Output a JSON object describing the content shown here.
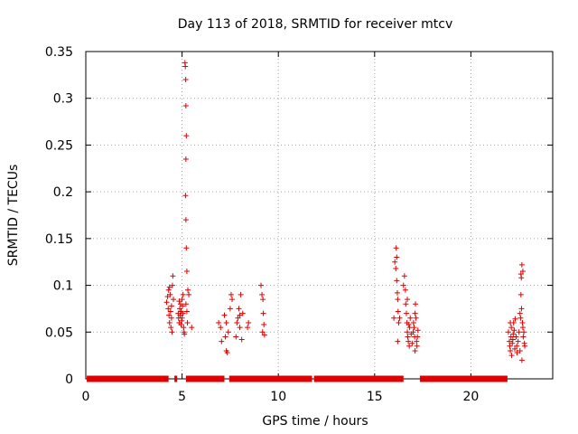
{
  "chart_data": {
    "type": "scatter",
    "title": "Day 113 of 2018, SRMTID for receiver mtcv",
    "xlabel": "GPS time / hours",
    "ylabel": "SRMTID / TECUs",
    "xlim": [
      0,
      24.25
    ],
    "ylim": [
      0,
      0.35
    ],
    "xticks": [
      0,
      5,
      10,
      15,
      20
    ],
    "xtick_labels": [
      "0",
      "5",
      "10",
      "15",
      "20"
    ],
    "yticks": [
      0,
      0.05,
      0.1,
      0.15,
      0.2,
      0.25,
      0.3,
      0.35
    ],
    "ytick_labels": [
      "0",
      "0.05",
      "0.1",
      "0.15",
      "0.2",
      "0.25",
      "0.3",
      "0.35"
    ],
    "grid": true,
    "marker": "plus",
    "color": "#e00000",
    "series": [
      {
        "zero_segments": [
          [
            0.05,
            4.3
          ],
          [
            4.6,
            4.75
          ],
          [
            5.2,
            7.2
          ],
          [
            7.45,
            11.75
          ],
          [
            11.85,
            16.5
          ],
          [
            17.35,
            21.9
          ]
        ],
        "points": [
          [
            4.2,
            0.082
          ],
          [
            4.25,
            0.088
          ],
          [
            4.28,
            0.075
          ],
          [
            4.3,
            0.095
          ],
          [
            4.32,
            0.068
          ],
          [
            4.35,
            0.06
          ],
          [
            4.38,
            0.09
          ],
          [
            4.4,
            0.072
          ],
          [
            4.42,
            0.055
          ],
          [
            4.45,
            0.065
          ],
          [
            4.48,
            0.05
          ],
          [
            4.5,
            0.1
          ],
          [
            4.52,
            0.11
          ],
          [
            4.55,
            0.085
          ],
          [
            4.35,
            0.098
          ],
          [
            4.45,
            0.078
          ],
          [
            4.8,
            0.07
          ],
          [
            4.82,
            0.065
          ],
          [
            4.85,
            0.06
          ],
          [
            4.88,
            0.075
          ],
          [
            4.9,
            0.068
          ],
          [
            4.92,
            0.08
          ],
          [
            4.95,
            0.072
          ],
          [
            4.98,
            0.062
          ],
          [
            5.0,
            0.085
          ],
          [
            5.02,
            0.078
          ],
          [
            5.05,
            0.07
          ],
          [
            5.08,
            0.055
          ],
          [
            5.1,
            0.05
          ],
          [
            5.12,
            0.048
          ],
          [
            5.0,
            0.065
          ],
          [
            4.95,
            0.058
          ],
          [
            5.05,
            0.09
          ],
          [
            4.85,
            0.083
          ],
          [
            5.15,
            0.338
          ],
          [
            5.17,
            0.334
          ],
          [
            5.19,
            0.32
          ],
          [
            5.2,
            0.292
          ],
          [
            5.22,
            0.26
          ],
          [
            5.2,
            0.235
          ],
          [
            5.18,
            0.196
          ],
          [
            5.2,
            0.17
          ],
          [
            5.22,
            0.14
          ],
          [
            5.25,
            0.115
          ],
          [
            5.3,
            0.095
          ],
          [
            5.35,
            0.09
          ],
          [
            5.2,
            0.08
          ],
          [
            5.25,
            0.072
          ],
          [
            5.28,
            0.06
          ],
          [
            5.5,
            0.055
          ],
          [
            6.9,
            0.06
          ],
          [
            7.0,
            0.055
          ],
          [
            7.05,
            0.04
          ],
          [
            7.2,
            0.068
          ],
          [
            7.25,
            0.045
          ],
          [
            7.3,
            0.03
          ],
          [
            7.35,
            0.028
          ],
          [
            7.4,
            0.05
          ],
          [
            7.5,
            0.075
          ],
          [
            7.55,
            0.09
          ],
          [
            7.6,
            0.085
          ],
          [
            7.3,
            0.06
          ],
          [
            7.8,
            0.045
          ],
          [
            7.85,
            0.06
          ],
          [
            7.9,
            0.065
          ],
          [
            7.95,
            0.075
          ],
          [
            8.0,
            0.068
          ],
          [
            8.05,
            0.09
          ],
          [
            8.1,
            0.042
          ],
          [
            8.0,
            0.055
          ],
          [
            8.15,
            0.07
          ],
          [
            8.4,
            0.055
          ],
          [
            8.45,
            0.06
          ],
          [
            9.1,
            0.1
          ],
          [
            9.15,
            0.09
          ],
          [
            9.2,
            0.085
          ],
          [
            9.22,
            0.07
          ],
          [
            9.25,
            0.058
          ],
          [
            9.18,
            0.05
          ],
          [
            9.28,
            0.047
          ],
          [
            16.0,
            0.065
          ],
          [
            16.05,
            0.125
          ],
          [
            16.1,
            0.118
          ],
          [
            16.12,
            0.14
          ],
          [
            16.15,
            0.105
          ],
          [
            16.18,
            0.092
          ],
          [
            16.2,
            0.085
          ],
          [
            16.22,
            0.072
          ],
          [
            16.25,
            0.06
          ],
          [
            16.15,
            0.13
          ],
          [
            16.3,
            0.065
          ],
          [
            16.2,
            0.04
          ],
          [
            16.5,
            0.1
          ],
          [
            16.55,
            0.11
          ],
          [
            16.6,
            0.095
          ],
          [
            16.62,
            0.08
          ],
          [
            16.65,
            0.07
          ],
          [
            16.68,
            0.06
          ],
          [
            16.7,
            0.05
          ],
          [
            16.72,
            0.045
          ],
          [
            16.75,
            0.04
          ],
          [
            16.8,
            0.035
          ],
          [
            16.82,
            0.055
          ],
          [
            16.85,
            0.065
          ],
          [
            16.9,
            0.048
          ],
          [
            16.95,
            0.038
          ],
          [
            17.0,
            0.05
          ],
          [
            17.02,
            0.06
          ],
          [
            17.05,
            0.055
          ],
          [
            17.08,
            0.045
          ],
          [
            17.1,
            0.07
          ],
          [
            17.12,
            0.08
          ],
          [
            17.15,
            0.065
          ],
          [
            17.18,
            0.04
          ],
          [
            17.2,
            0.035
          ],
          [
            17.22,
            0.045
          ],
          [
            17.25,
            0.052
          ],
          [
            17.1,
            0.03
          ],
          [
            16.7,
            0.085
          ],
          [
            16.78,
            0.058
          ],
          [
            21.95,
            0.05
          ],
          [
            22.0,
            0.04
          ],
          [
            22.02,
            0.035
          ],
          [
            22.05,
            0.03
          ],
          [
            22.08,
            0.045
          ],
          [
            22.1,
            0.055
          ],
          [
            22.12,
            0.025
          ],
          [
            22.15,
            0.038
          ],
          [
            22.18,
            0.042
          ],
          [
            22.2,
            0.048
          ],
          [
            22.22,
            0.06
          ],
          [
            22.25,
            0.052
          ],
          [
            22.28,
            0.032
          ],
          [
            22.3,
            0.064
          ],
          [
            22.35,
            0.045
          ],
          [
            22.38,
            0.035
          ],
          [
            22.4,
            0.028
          ],
          [
            22.05,
            0.06
          ],
          [
            22.45,
            0.04
          ],
          [
            22.5,
            0.05
          ],
          [
            22.55,
            0.07
          ],
          [
            22.58,
            0.065
          ],
          [
            22.6,
            0.112
          ],
          [
            22.62,
            0.108
          ],
          [
            22.65,
            0.122
          ],
          [
            22.6,
            0.09
          ],
          [
            22.63,
            0.075
          ],
          [
            22.68,
            0.06
          ],
          [
            22.7,
            0.055
          ],
          [
            22.72,
            0.045
          ],
          [
            22.75,
            0.05
          ],
          [
            22.78,
            0.038
          ],
          [
            22.8,
            0.035
          ],
          [
            22.55,
            0.03
          ],
          [
            22.65,
            0.02
          ],
          [
            22.7,
            0.115
          ]
        ]
      }
    ]
  }
}
